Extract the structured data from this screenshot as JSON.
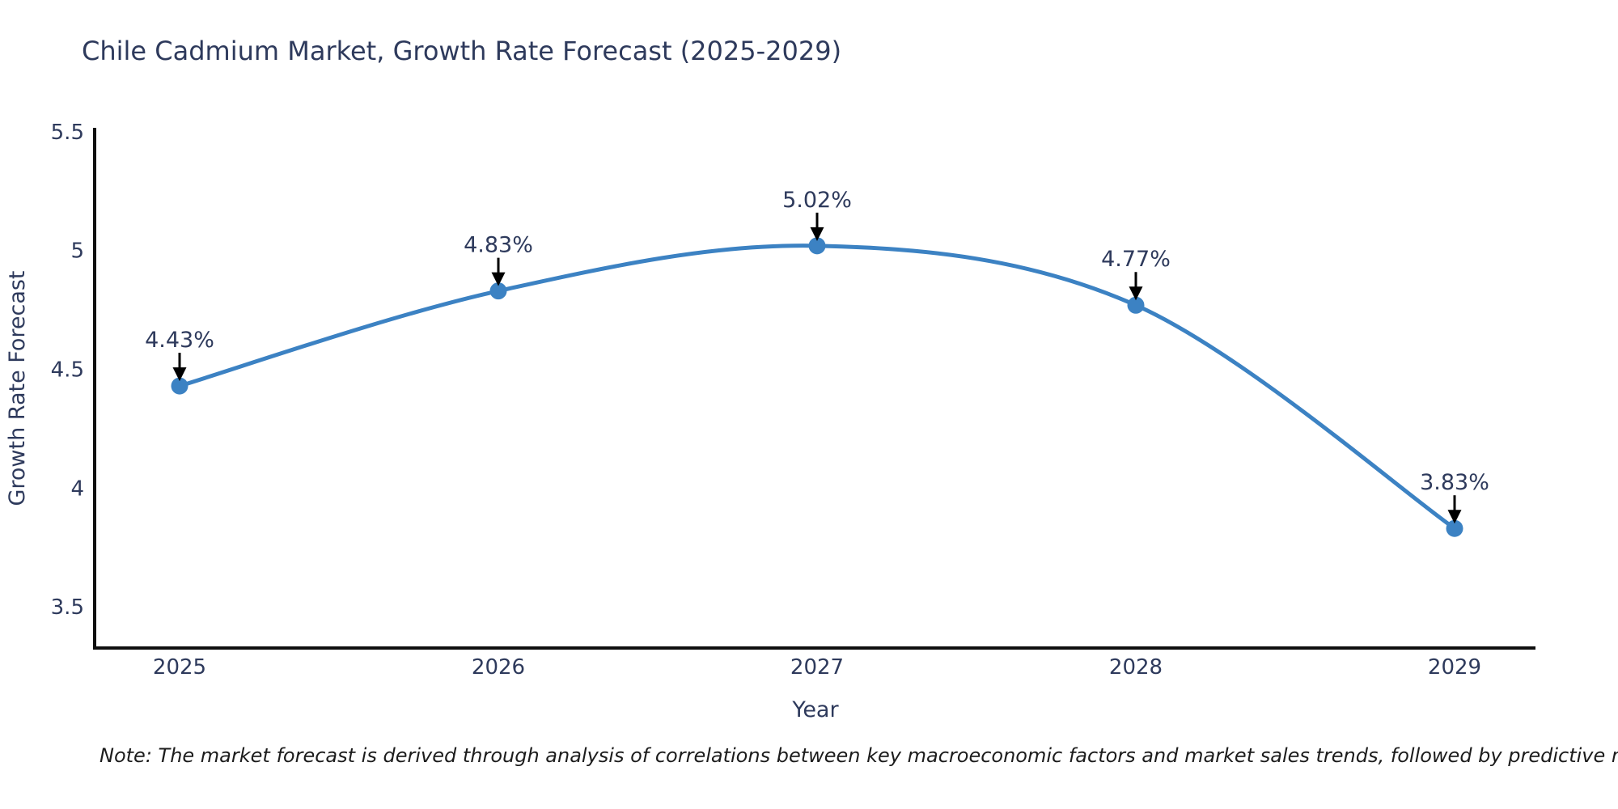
{
  "chart_data": {
    "type": "line",
    "title": "Chile Cadmium Market, Growth Rate Forecast (2025-2029)",
    "xlabel": "Year",
    "ylabel": "Growth Rate Forecast",
    "categories": [
      "2025",
      "2026",
      "2027",
      "2028",
      "2029"
    ],
    "values": [
      4.43,
      4.83,
      5.02,
      4.77,
      3.83
    ],
    "point_labels": [
      "4.43%",
      "4.83%",
      "5.02%",
      "4.77%",
      "3.83%"
    ],
    "yticks": [
      {
        "v": 3.5,
        "label": "3.5"
      },
      {
        "v": 4.0,
        "label": "4"
      },
      {
        "v": 4.5,
        "label": "4.5"
      },
      {
        "v": 5.0,
        "label": "5"
      },
      {
        "v": 5.5,
        "label": "5.5"
      }
    ],
    "ylim": [
      3.33,
      5.51
    ],
    "grid": false,
    "legend": "none",
    "line_shape": "spline",
    "colors": {
      "line": "#3c82c3",
      "marker": "#3c82c3",
      "axis": "#0f0f0f",
      "text": "#2e3a5c",
      "annotation_arrow": "#000000",
      "note_text": "#1c1c1c",
      "background": "#ffffff"
    }
  },
  "note": "Note: The market forecast is derived through analysis of correlations between key macroeconomic factors and market sales trends, followed by predictive modeling to project future sales"
}
